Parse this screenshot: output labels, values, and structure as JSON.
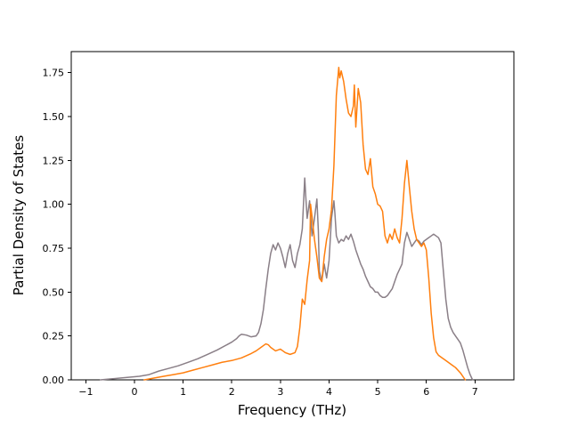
{
  "figure": {
    "background": "#ffffff"
  },
  "chart_data": {
    "type": "line",
    "title": "",
    "xlabel": "Frequency (THz)",
    "ylabel": "Partial Density of States",
    "xlim": [
      -1.3,
      7.8
    ],
    "ylim": [
      0,
      1.87
    ],
    "grid": false,
    "legend": "none",
    "axis_color": "#000000",
    "tick_font_px": 11,
    "x_ticks": [
      -1,
      0,
      1,
      2,
      3,
      4,
      5,
      6,
      7
    ],
    "x_tick_labels": [
      "−1",
      "0",
      "1",
      "2",
      "3",
      "4",
      "5",
      "6",
      "7"
    ],
    "y_ticks": [
      0,
      0.25,
      0.5,
      0.75,
      1.0,
      1.25,
      1.5,
      1.75
    ],
    "y_tick_labels": [
      "0.00",
      "0.25",
      "0.50",
      "0.75",
      "1.00",
      "1.25",
      "1.50",
      "1.75"
    ],
    "series": [
      {
        "name": "pdos-gray",
        "color": "#8a7f87",
        "line_width": 1.5,
        "points": [
          [
            -0.7,
            0.0
          ],
          [
            -0.5,
            0.005
          ],
          [
            -0.3,
            0.01
          ],
          [
            -0.1,
            0.015
          ],
          [
            0.1,
            0.02
          ],
          [
            0.3,
            0.03
          ],
          [
            0.5,
            0.05
          ],
          [
            0.7,
            0.065
          ],
          [
            0.9,
            0.08
          ],
          [
            1.1,
            0.1
          ],
          [
            1.3,
            0.12
          ],
          [
            1.5,
            0.145
          ],
          [
            1.7,
            0.17
          ],
          [
            1.9,
            0.2
          ],
          [
            2.0,
            0.215
          ],
          [
            2.1,
            0.235
          ],
          [
            2.15,
            0.25
          ],
          [
            2.2,
            0.26
          ],
          [
            2.3,
            0.255
          ],
          [
            2.4,
            0.245
          ],
          [
            2.5,
            0.25
          ],
          [
            2.55,
            0.27
          ],
          [
            2.6,
            0.32
          ],
          [
            2.65,
            0.4
          ],
          [
            2.7,
            0.52
          ],
          [
            2.75,
            0.63
          ],
          [
            2.8,
            0.72
          ],
          [
            2.85,
            0.77
          ],
          [
            2.9,
            0.74
          ],
          [
            2.95,
            0.78
          ],
          [
            3.0,
            0.75
          ],
          [
            3.05,
            0.7
          ],
          [
            3.1,
            0.64
          ],
          [
            3.15,
            0.72
          ],
          [
            3.2,
            0.77
          ],
          [
            3.25,
            0.68
          ],
          [
            3.3,
            0.64
          ],
          [
            3.35,
            0.72
          ],
          [
            3.4,
            0.77
          ],
          [
            3.45,
            0.86
          ],
          [
            3.5,
            1.15
          ],
          [
            3.52,
            1.05
          ],
          [
            3.55,
            0.92
          ],
          [
            3.6,
            1.02
          ],
          [
            3.65,
            0.82
          ],
          [
            3.7,
            0.92
          ],
          [
            3.75,
            1.03
          ],
          [
            3.78,
            0.85
          ],
          [
            3.8,
            0.62
          ],
          [
            3.85,
            0.56
          ],
          [
            3.9,
            0.66
          ],
          [
            3.95,
            0.58
          ],
          [
            4.0,
            0.68
          ],
          [
            4.05,
            0.92
          ],
          [
            4.1,
            1.02
          ],
          [
            4.12,
            0.95
          ],
          [
            4.15,
            0.82
          ],
          [
            4.2,
            0.78
          ],
          [
            4.25,
            0.8
          ],
          [
            4.3,
            0.79
          ],
          [
            4.35,
            0.82
          ],
          [
            4.4,
            0.8
          ],
          [
            4.45,
            0.83
          ],
          [
            4.5,
            0.79
          ],
          [
            4.55,
            0.74
          ],
          [
            4.6,
            0.7
          ],
          [
            4.65,
            0.66
          ],
          [
            4.7,
            0.63
          ],
          [
            4.75,
            0.59
          ],
          [
            4.8,
            0.56
          ],
          [
            4.85,
            0.53
          ],
          [
            4.9,
            0.52
          ],
          [
            4.95,
            0.5
          ],
          [
            5.0,
            0.5
          ],
          [
            5.05,
            0.48
          ],
          [
            5.1,
            0.47
          ],
          [
            5.15,
            0.47
          ],
          [
            5.2,
            0.48
          ],
          [
            5.25,
            0.5
          ],
          [
            5.3,
            0.52
          ],
          [
            5.35,
            0.56
          ],
          [
            5.4,
            0.6
          ],
          [
            5.45,
            0.63
          ],
          [
            5.5,
            0.66
          ],
          [
            5.55,
            0.78
          ],
          [
            5.6,
            0.84
          ],
          [
            5.65,
            0.8
          ],
          [
            5.7,
            0.76
          ],
          [
            5.75,
            0.78
          ],
          [
            5.8,
            0.8
          ],
          [
            5.85,
            0.79
          ],
          [
            5.9,
            0.77
          ],
          [
            5.95,
            0.79
          ],
          [
            6.0,
            0.8
          ],
          [
            6.05,
            0.81
          ],
          [
            6.1,
            0.82
          ],
          [
            6.15,
            0.83
          ],
          [
            6.2,
            0.82
          ],
          [
            6.25,
            0.81
          ],
          [
            6.3,
            0.78
          ],
          [
            6.35,
            0.62
          ],
          [
            6.4,
            0.46
          ],
          [
            6.45,
            0.35
          ],
          [
            6.5,
            0.3
          ],
          [
            6.55,
            0.27
          ],
          [
            6.6,
            0.25
          ],
          [
            6.65,
            0.23
          ],
          [
            6.7,
            0.21
          ],
          [
            6.75,
            0.17
          ],
          [
            6.8,
            0.12
          ],
          [
            6.85,
            0.07
          ],
          [
            6.9,
            0.03
          ],
          [
            6.95,
            0.0
          ]
        ]
      },
      {
        "name": "pdos-orange",
        "color": "#ff7f0e",
        "line_width": 1.5,
        "points": [
          [
            0.2,
            0.0
          ],
          [
            0.4,
            0.01
          ],
          [
            0.6,
            0.02
          ],
          [
            0.8,
            0.03
          ],
          [
            1.0,
            0.04
          ],
          [
            1.2,
            0.055
          ],
          [
            1.4,
            0.07
          ],
          [
            1.6,
            0.085
          ],
          [
            1.8,
            0.1
          ],
          [
            2.0,
            0.11
          ],
          [
            2.2,
            0.125
          ],
          [
            2.4,
            0.15
          ],
          [
            2.5,
            0.165
          ],
          [
            2.6,
            0.185
          ],
          [
            2.7,
            0.205
          ],
          [
            2.75,
            0.2
          ],
          [
            2.8,
            0.185
          ],
          [
            2.9,
            0.165
          ],
          [
            3.0,
            0.175
          ],
          [
            3.05,
            0.165
          ],
          [
            3.1,
            0.155
          ],
          [
            3.2,
            0.145
          ],
          [
            3.3,
            0.155
          ],
          [
            3.35,
            0.19
          ],
          [
            3.4,
            0.3
          ],
          [
            3.45,
            0.46
          ],
          [
            3.5,
            0.43
          ],
          [
            3.55,
            0.57
          ],
          [
            3.6,
            0.68
          ],
          [
            3.62,
            1.0
          ],
          [
            3.65,
            0.93
          ],
          [
            3.7,
            0.8
          ],
          [
            3.75,
            0.7
          ],
          [
            3.8,
            0.58
          ],
          [
            3.85,
            0.56
          ],
          [
            3.9,
            0.7
          ],
          [
            3.95,
            0.8
          ],
          [
            4.0,
            0.86
          ],
          [
            4.05,
            0.97
          ],
          [
            4.1,
            1.22
          ],
          [
            4.15,
            1.62
          ],
          [
            4.2,
            1.78
          ],
          [
            4.22,
            1.72
          ],
          [
            4.25,
            1.76
          ],
          [
            4.3,
            1.7
          ],
          [
            4.35,
            1.6
          ],
          [
            4.4,
            1.52
          ],
          [
            4.45,
            1.5
          ],
          [
            4.5,
            1.56
          ],
          [
            4.52,
            1.68
          ],
          [
            4.55,
            1.44
          ],
          [
            4.6,
            1.66
          ],
          [
            4.65,
            1.58
          ],
          [
            4.7,
            1.34
          ],
          [
            4.75,
            1.2
          ],
          [
            4.8,
            1.17
          ],
          [
            4.85,
            1.26
          ],
          [
            4.9,
            1.1
          ],
          [
            4.95,
            1.06
          ],
          [
            5.0,
            1.0
          ],
          [
            5.05,
            0.99
          ],
          [
            5.1,
            0.96
          ],
          [
            5.15,
            0.82
          ],
          [
            5.2,
            0.78
          ],
          [
            5.25,
            0.83
          ],
          [
            5.3,
            0.8
          ],
          [
            5.35,
            0.86
          ],
          [
            5.4,
            0.81
          ],
          [
            5.45,
            0.78
          ],
          [
            5.5,
            0.92
          ],
          [
            5.55,
            1.12
          ],
          [
            5.6,
            1.25
          ],
          [
            5.65,
            1.1
          ],
          [
            5.7,
            0.96
          ],
          [
            5.75,
            0.86
          ],
          [
            5.8,
            0.8
          ],
          [
            5.85,
            0.78
          ],
          [
            5.9,
            0.76
          ],
          [
            5.95,
            0.78
          ],
          [
            6.0,
            0.74
          ],
          [
            6.05,
            0.58
          ],
          [
            6.1,
            0.38
          ],
          [
            6.15,
            0.24
          ],
          [
            6.2,
            0.16
          ],
          [
            6.25,
            0.14
          ],
          [
            6.3,
            0.13
          ],
          [
            6.4,
            0.11
          ],
          [
            6.5,
            0.09
          ],
          [
            6.6,
            0.07
          ],
          [
            6.7,
            0.04
          ],
          [
            6.75,
            0.02
          ],
          [
            6.8,
            0.0
          ]
        ]
      }
    ]
  }
}
